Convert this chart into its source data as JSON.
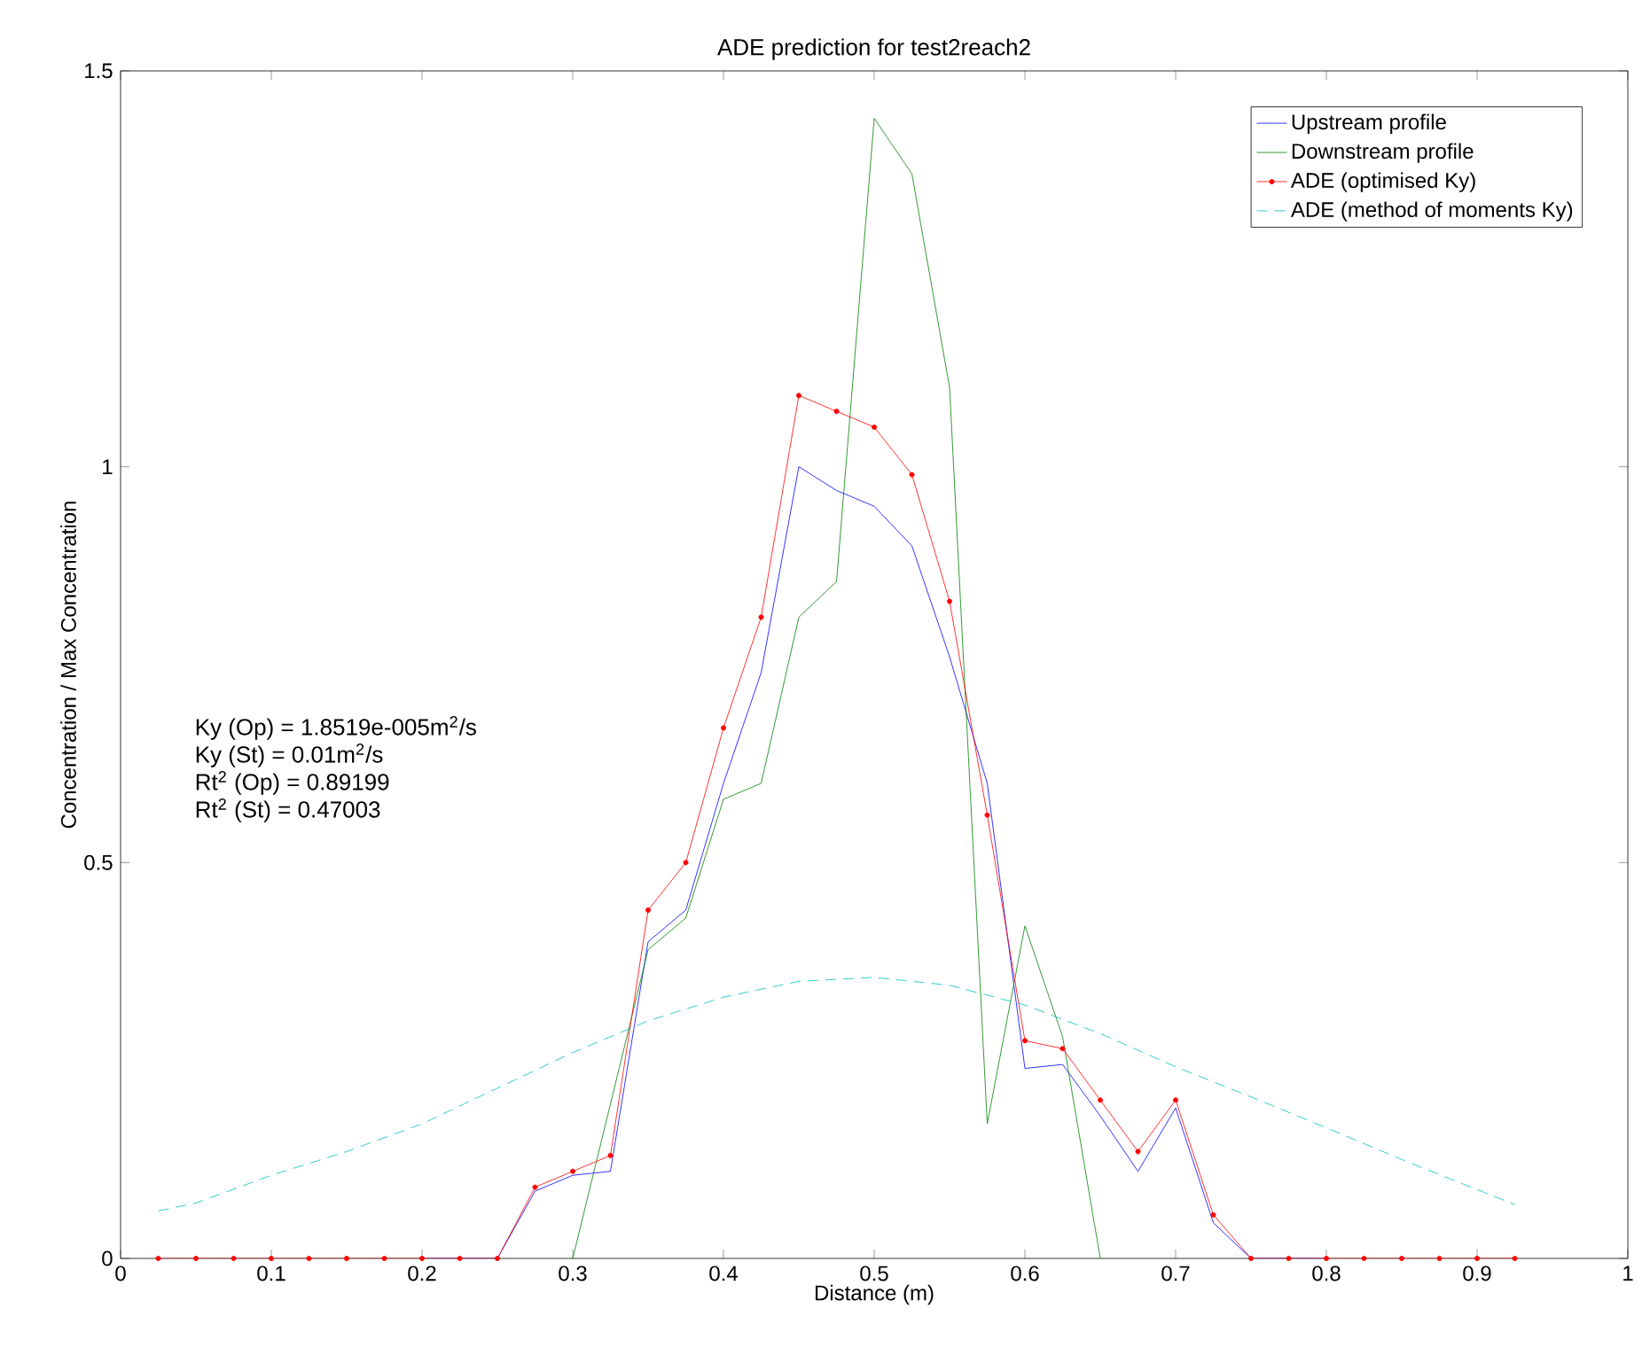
{
  "chart_data": {
    "type": "line",
    "title": "ADE prediction for test2reach2",
    "xlabel": "Distance (m)",
    "ylabel": "Concentration / Max Concentration",
    "xlim": [
      0,
      1
    ],
    "ylim": [
      0,
      1.5
    ],
    "xticks": [
      0,
      0.1,
      0.2,
      0.3,
      0.4,
      0.5,
      0.6,
      0.7,
      0.8,
      0.9,
      1
    ],
    "yticks": [
      0,
      0.5,
      1,
      1.5
    ],
    "grid": false,
    "legend": "top right",
    "annotations": [
      "Ky (Op) = 1.8519e-005m$^{2}$/s",
      "Ky (St) = 0.01m$^{2}$/s",
      "Rt$^{2}$ (Op) = 0.89199",
      "Rt$^{2}$ (St) = 0.47003"
    ],
    "series": [
      {
        "name": "Upstream profile",
        "color": "#0000ff",
        "marker": "none",
        "line_style": "solid",
        "x": [
          0.2,
          0.225,
          0.25,
          0.275,
          0.3,
          0.325,
          0.35,
          0.375,
          0.4,
          0.425,
          0.45,
          0.475,
          0.5,
          0.525,
          0.55,
          0.575,
          0.6,
          0.625,
          0.65,
          0.675,
          0.7,
          0.725,
          0.75,
          0.775,
          0.8
        ],
        "values": [
          0,
          0,
          0,
          0.085,
          0.105,
          0.11,
          0.4,
          0.44,
          0.6,
          0.74,
          1.0,
          0.97,
          0.95,
          0.9,
          0.76,
          0.6,
          0.24,
          0.245,
          0.18,
          0.11,
          0.19,
          0.045,
          0,
          0,
          0
        ]
      },
      {
        "name": "Downstream profile",
        "color": "#008000",
        "marker": "none",
        "line_style": "solid",
        "x": [
          0.3,
          0.35,
          0.375,
          0.4,
          0.425,
          0.45,
          0.475,
          0.5,
          0.525,
          0.55,
          0.575,
          0.6,
          0.625,
          0.65
        ],
        "values": [
          0,
          0.39,
          0.43,
          0.58,
          0.6,
          0.81,
          0.855,
          1.44,
          1.37,
          1.1,
          0.17,
          0.42,
          0.28,
          0
        ]
      },
      {
        "name": "ADE (optimised Ky)",
        "color": "#ff0000",
        "marker": "circle",
        "line_style": "solid",
        "x": [
          0.025,
          0.05,
          0.075,
          0.1,
          0.125,
          0.15,
          0.175,
          0.2,
          0.225,
          0.25,
          0.275,
          0.3,
          0.325,
          0.35,
          0.375,
          0.4,
          0.425,
          0.45,
          0.475,
          0.5,
          0.525,
          0.55,
          0.575,
          0.6,
          0.625,
          0.65,
          0.675,
          0.7,
          0.725,
          0.75,
          0.775,
          0.8,
          0.825,
          0.85,
          0.875,
          0.9,
          0.925
        ],
        "values": [
          0,
          0,
          0,
          0,
          0,
          0,
          0,
          0,
          0,
          0,
          0.09,
          0.11,
          0.13,
          0.44,
          0.5,
          0.67,
          0.81,
          1.09,
          1.07,
          1.05,
          0.99,
          0.83,
          0.56,
          0.275,
          0.265,
          0.2,
          0.135,
          0.2,
          0.055,
          0,
          0,
          0,
          0,
          0,
          0,
          0,
          0
        ]
      },
      {
        "name": "ADE (method of moments Ky)",
        "color": "#00bfbf",
        "marker": "none",
        "line_style": "dashed",
        "x": [
          0.025,
          0.05,
          0.1,
          0.15,
          0.2,
          0.25,
          0.3,
          0.35,
          0.4,
          0.45,
          0.5,
          0.55,
          0.6,
          0.65,
          0.7,
          0.75,
          0.8,
          0.85,
          0.9,
          0.925
        ],
        "values": [
          0.06,
          0.07,
          0.105,
          0.135,
          0.17,
          0.215,
          0.26,
          0.3,
          0.33,
          0.35,
          0.355,
          0.345,
          0.32,
          0.284,
          0.242,
          0.204,
          0.165,
          0.125,
          0.087,
          0.068
        ]
      }
    ]
  }
}
